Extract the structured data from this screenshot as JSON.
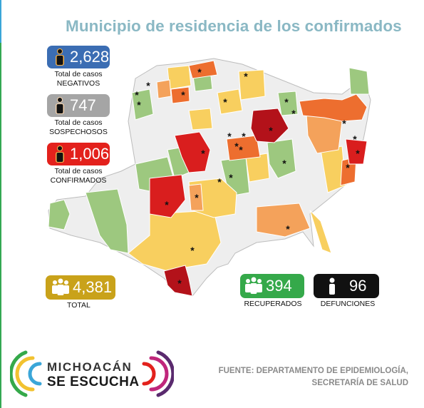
{
  "title": "Municipio de residencia de los confirmados",
  "stats": {
    "negativos": {
      "value": "2,628",
      "label_line1": "Total de casos",
      "label_line2": "NEGATIVOS",
      "color": "#3b6db3"
    },
    "sospechosos": {
      "value": "747",
      "label_line1": "Total de casos",
      "label_line2": "SOSPECHOSOS",
      "color": "#a5a5a5"
    },
    "confirmados": {
      "value": "1,006",
      "label_line1": "Total de casos",
      "label_line2": "CONFIRMADOS",
      "color": "#e3211c"
    },
    "total": {
      "value": "4,381",
      "label": "TOTAL",
      "color": "#c9a21a"
    },
    "recuperados": {
      "value": "394",
      "label": "RECUPERADOS",
      "color": "#35a94a"
    },
    "defunciones": {
      "value": "96",
      "label": "DEFUNCIONES",
      "color": "#111111"
    }
  },
  "legend_colors": {
    "sin_casos": "#eeeeee",
    "verde": "#9dc87f",
    "amarillo": "#f8cf5f",
    "naranja_claro": "#f4a25b",
    "naranja": "#ed6e2f",
    "rojo": "#d91e1e",
    "rojo_oscuro": "#b3121a"
  },
  "map": {
    "marker": "*"
  },
  "logo": {
    "line1": "MICHOACÁN",
    "line2": "SE ESCUCHA"
  },
  "source": {
    "line1": "FUENTE: DEPARTAMENTO DE EPIDEMIOLOGÍA,",
    "line2": "SECRETARÍA DE SALUD"
  }
}
